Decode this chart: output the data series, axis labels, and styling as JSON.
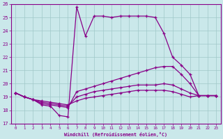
{
  "xlabel": "Windchill (Refroidissement éolien,°C)",
  "xlim": [
    -0.5,
    23.5
  ],
  "ylim": [
    17,
    26
  ],
  "yticks": [
    17,
    18,
    19,
    20,
    21,
    22,
    23,
    24,
    25,
    26
  ],
  "xticks": [
    0,
    1,
    2,
    3,
    4,
    5,
    6,
    7,
    8,
    9,
    10,
    11,
    12,
    13,
    14,
    15,
    16,
    17,
    18,
    19,
    20,
    21,
    22,
    23
  ],
  "bg_color": "#cae8ea",
  "line_color": "#880088",
  "grid_color": "#a0c8c8",
  "hours": [
    0,
    1,
    2,
    3,
    4,
    5,
    6,
    7,
    8,
    9,
    10,
    11,
    12,
    13,
    14,
    15,
    16,
    17,
    18,
    19,
    20,
    21,
    22,
    23
  ],
  "temp": [
    19.3,
    19.0,
    18.8,
    18.4,
    18.3,
    17.6,
    17.5,
    25.8,
    23.6,
    25.1,
    25.1,
    25.0,
    25.1,
    25.1,
    25.1,
    25.1,
    25.0,
    23.8,
    22.0,
    21.4,
    20.7,
    19.1,
    19.1,
    19.1
  ],
  "windchill": [
    19.3,
    19.0,
    18.8,
    18.5,
    18.4,
    18.3,
    18.2,
    19.4,
    19.6,
    19.8,
    20.0,
    20.2,
    20.4,
    20.6,
    20.8,
    21.0,
    21.2,
    21.3,
    21.3,
    20.7,
    20.0,
    19.1,
    19.1,
    19.1
  ],
  "line2": [
    19.3,
    19.0,
    18.8,
    18.6,
    18.5,
    18.4,
    18.3,
    19.0,
    19.2,
    19.4,
    19.5,
    19.6,
    19.7,
    19.8,
    19.9,
    19.9,
    19.9,
    20.0,
    19.9,
    19.6,
    19.3,
    19.1,
    19.1,
    19.1
  ],
  "line3": [
    19.3,
    19.0,
    18.8,
    18.7,
    18.6,
    18.5,
    18.4,
    18.7,
    18.9,
    19.0,
    19.1,
    19.2,
    19.3,
    19.4,
    19.5,
    19.5,
    19.5,
    19.5,
    19.4,
    19.2,
    19.0,
    19.1,
    19.1,
    19.1
  ]
}
